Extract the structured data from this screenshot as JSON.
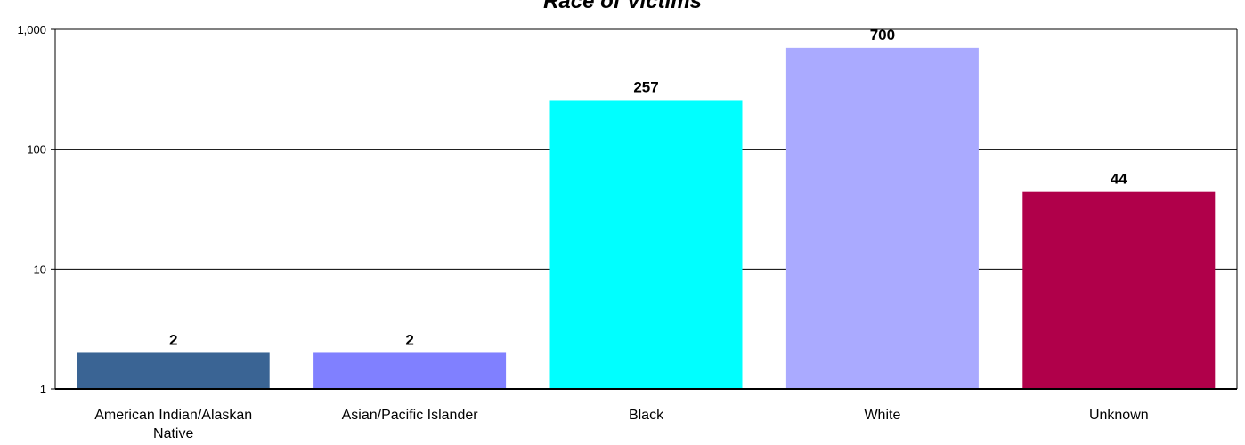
{
  "chart_data": {
    "type": "bar",
    "title": "Race of Victims",
    "xlabel": "",
    "ylabel": "",
    "yscale": "log",
    "ylim": [
      1,
      1000
    ],
    "yticks": [
      {
        "value": 1,
        "label": "1"
      },
      {
        "value": 10,
        "label": "10"
      },
      {
        "value": 100,
        "label": "100"
      },
      {
        "value": 1000,
        "label": "1,000"
      }
    ],
    "grid": true,
    "categories": [
      [
        "American Indian/Alaskan",
        "Native"
      ],
      [
        "Asian/Pacific Islander"
      ],
      [
        "Black"
      ],
      [
        "White"
      ],
      [
        "Unknown"
      ]
    ],
    "values": [
      2,
      2,
      257,
      700,
      44
    ],
    "data_labels": [
      "2",
      "2",
      "257",
      "700",
      "44"
    ],
    "colors": [
      "#3A6494",
      "#8080FF",
      "#00FFFF",
      "#AAAAFF",
      "#B0004A"
    ]
  }
}
